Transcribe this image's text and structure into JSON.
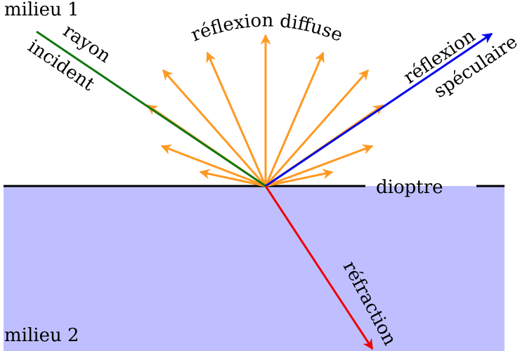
{
  "labels": {
    "medium_top": "milieu 1",
    "incident_1": "rayon",
    "incident_2": "incident",
    "diffuse": "réflexion diffuse",
    "specular_1": "réflexion",
    "specular_2": "spéculaire",
    "interface": "dioptre",
    "refraction": "réfraction",
    "medium_bottom": "milieu 2"
  }
}
